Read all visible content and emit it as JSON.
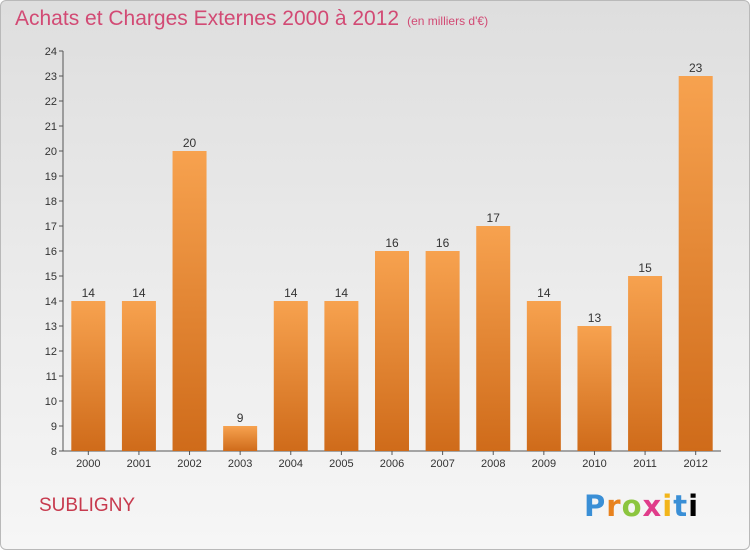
{
  "title": "Achats et Charges Externes 2000 à 2012",
  "subtitle": "(en milliers d'€)",
  "commune": "SUBLIGNY",
  "logo": {
    "letters": [
      "P",
      "r",
      "o",
      "x",
      "i",
      "t",
      "i"
    ]
  },
  "colors": {
    "bar_top": "#f7a24f",
    "bar_bottom": "#cf6b1a",
    "title": "#d24a74"
  },
  "chart_data": {
    "type": "bar",
    "title": "Achats et Charges Externes 2000 à 2012",
    "subtitle": "(en milliers d'€)",
    "categories": [
      "2000",
      "2001",
      "2002",
      "2003",
      "2004",
      "2005",
      "2006",
      "2007",
      "2008",
      "2009",
      "2010",
      "2011",
      "2012"
    ],
    "values": [
      14,
      14,
      20,
      9,
      14,
      14,
      16,
      16,
      17,
      14,
      13,
      15,
      23
    ],
    "ylim": [
      8,
      24
    ],
    "yticks": [
      8,
      9,
      10,
      11,
      12,
      13,
      14,
      15,
      16,
      17,
      18,
      19,
      20,
      21,
      22,
      23,
      24
    ],
    "grid": false,
    "legend": "none"
  }
}
